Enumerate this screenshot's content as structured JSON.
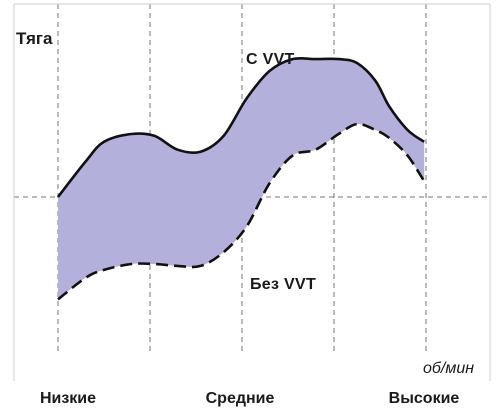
{
  "chart_data": {
    "type": "area",
    "ylabel": "Тяга",
    "xlabel": "об/мин",
    "categories": [
      "Низкие",
      "Средние",
      "Высокие"
    ],
    "xlim": [
      0,
      4
    ],
    "ylim": [
      -4,
      5
    ],
    "grid": true,
    "colors": {
      "band": "#b4b0dc",
      "line": "#111111",
      "grid": "#777777"
    },
    "series": [
      {
        "name": "С VVT",
        "style": "solid",
        "x": [
          0,
          0.3,
          0.5,
          0.8,
          1.05,
          1.3,
          1.55,
          1.8,
          2.05,
          2.3,
          2.55,
          2.8,
          3.05,
          3.25,
          3.45,
          3.6,
          3.8,
          3.98
        ],
        "y": [
          0,
          0.9,
          1.4,
          1.6,
          1.55,
          1.2,
          1.15,
          1.55,
          2.5,
          3.2,
          3.5,
          3.5,
          3.5,
          3.4,
          2.95,
          2.3,
          1.7,
          1.4
        ]
      },
      {
        "name": "Без VVT",
        "style": "dashed",
        "x": [
          0,
          0.3,
          0.5,
          0.8,
          1.05,
          1.3,
          1.55,
          1.8,
          2.05,
          2.3,
          2.55,
          2.8,
          3.05,
          3.25,
          3.45,
          3.6,
          3.8,
          3.98
        ],
        "y": [
          -2.6,
          -2.05,
          -1.85,
          -1.7,
          -1.7,
          -1.75,
          -1.75,
          -1.4,
          -0.75,
          0.35,
          1.05,
          1.2,
          1.6,
          1.85,
          1.7,
          1.5,
          1.05,
          0.4
        ]
      }
    ]
  }
}
